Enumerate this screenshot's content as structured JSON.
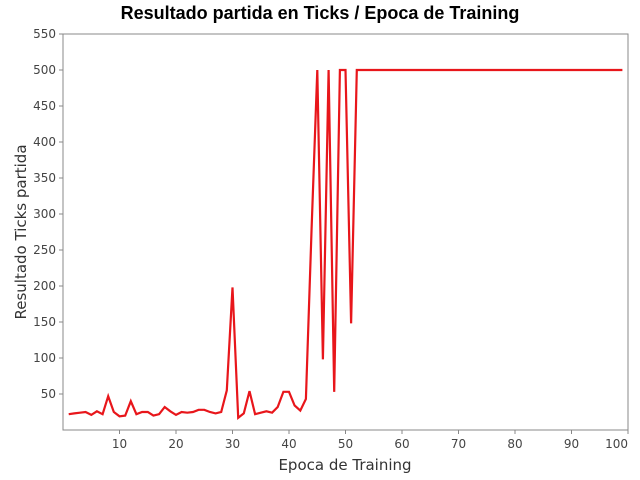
{
  "chart_data": {
    "type": "line",
    "title": "Resultado partida en Ticks / Epoca de Training",
    "xlabel": "Epoca de Training",
    "ylabel": "Resultado Ticks partida",
    "xlim": [
      0,
      100
    ],
    "ylim": [
      0,
      550
    ],
    "xticks": [
      "10",
      "20",
      "30",
      "40",
      "50",
      "60",
      "70",
      "80",
      "90",
      "100"
    ],
    "yticks": [
      "50",
      "100",
      "150",
      "200",
      "250",
      "300",
      "350",
      "400",
      "450",
      "500",
      "550"
    ],
    "grid": false,
    "legend": "none",
    "series": [
      {
        "color": "#e8161b",
        "x": [
          1,
          2,
          3,
          4,
          5,
          6,
          7,
          8,
          9,
          10,
          11,
          12,
          13,
          14,
          15,
          16,
          17,
          18,
          19,
          20,
          21,
          22,
          23,
          24,
          25,
          26,
          27,
          28,
          29,
          30,
          31,
          32,
          33,
          34,
          35,
          36,
          37,
          38,
          39,
          40,
          41,
          42,
          43,
          44,
          45,
          46,
          47,
          48,
          49,
          50,
          51,
          52,
          53,
          54,
          55,
          56,
          57,
          58,
          59,
          60,
          61,
          62,
          63,
          64,
          65,
          66,
          67,
          68,
          69,
          70,
          71,
          72,
          73,
          74,
          75,
          76,
          77,
          78,
          79,
          80,
          81,
          82,
          83,
          84,
          85,
          86,
          87,
          88,
          89,
          90,
          91,
          92,
          93,
          94,
          95,
          96,
          97,
          98,
          99
        ],
        "y": [
          22,
          23,
          24,
          25,
          21,
          26,
          22,
          47,
          25,
          19,
          20,
          40,
          22,
          25,
          25,
          20,
          22,
          32,
          26,
          21,
          25,
          24,
          25,
          28,
          28,
          25,
          23,
          25,
          55,
          198,
          17,
          23,
          54,
          22,
          24,
          26,
          24,
          32,
          53,
          53,
          34,
          27,
          43,
          280,
          500,
          98,
          500,
          53,
          500,
          500,
          148,
          500,
          500,
          500,
          500,
          500,
          500,
          500,
          500,
          500,
          500,
          500,
          500,
          500,
          500,
          500,
          500,
          500,
          500,
          500,
          500,
          500,
          500,
          500,
          500,
          500,
          500,
          500,
          500,
          500,
          500,
          500,
          500,
          500,
          500,
          500,
          500,
          500,
          500,
          500,
          500,
          500,
          500,
          500,
          500,
          500,
          500,
          500,
          500
        ]
      }
    ]
  }
}
